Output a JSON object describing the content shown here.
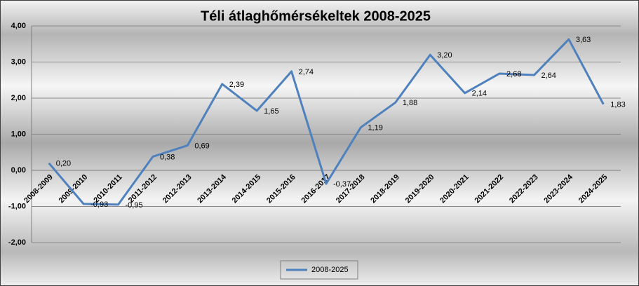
{
  "chart_data": {
    "type": "line",
    "title": "Téli átlaghőmérsékeltek 2008-2025",
    "categories": [
      "2008-2009",
      "2009-2010",
      "2010-2011",
      "2011-2012",
      "2012-2013",
      "2013-2014",
      "2014-2015",
      "2015-2016",
      "2016-2017",
      "2017-2018",
      "2018-2019",
      "2019-2020",
      "2020-2021",
      "2021-2022",
      "2022-2023",
      "2023-2024",
      "2024-2025"
    ],
    "series": [
      {
        "name": "2008-2025",
        "color": "#4f81bd",
        "values": [
          0.2,
          -0.93,
          -0.95,
          0.38,
          0.69,
          2.39,
          1.65,
          2.74,
          -0.37,
          1.19,
          1.88,
          3.2,
          2.14,
          2.68,
          2.64,
          3.63,
          1.83
        ],
        "value_labels": [
          "0,20",
          "-0,93",
          "-0,95",
          "0,38",
          "0,69",
          "2,39",
          "1,65",
          "2,74",
          "-0,37",
          "1,19",
          "1,88",
          "3,20",
          "2,14",
          "2,68",
          "2,64",
          "3,63",
          "1,83"
        ]
      }
    ],
    "ylim": [
      -2,
      4
    ],
    "yticks": [
      {
        "value": -2,
        "label": "-2,00"
      },
      {
        "value": -1,
        "label": "-1,00"
      },
      {
        "value": 0,
        "label": "0,00"
      },
      {
        "value": 1,
        "label": "1,00"
      },
      {
        "value": 2,
        "label": "2,00"
      },
      {
        "value": 3,
        "label": "3,00"
      },
      {
        "value": 4,
        "label": "4,00"
      }
    ],
    "grid": true,
    "legend": "bottom"
  }
}
